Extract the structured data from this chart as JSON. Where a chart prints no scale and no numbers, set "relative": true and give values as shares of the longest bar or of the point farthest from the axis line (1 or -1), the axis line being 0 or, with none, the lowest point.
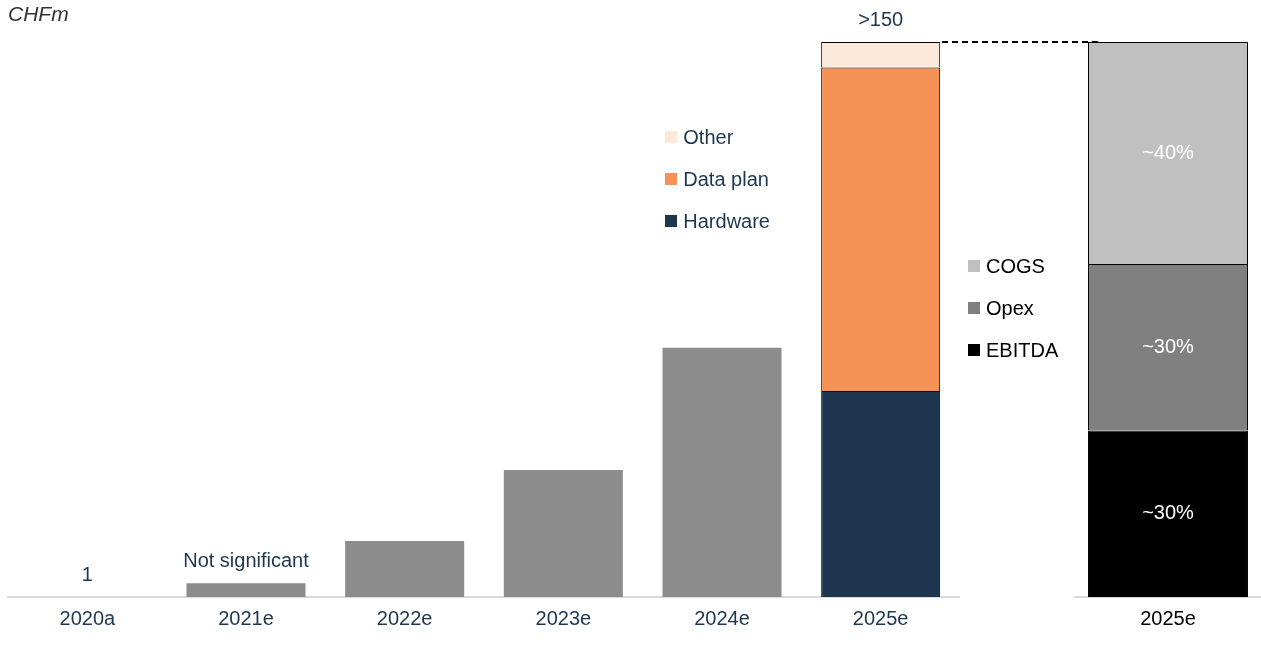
{
  "chart_data": [
    {
      "type": "bar",
      "ylabel": "CHFm",
      "categories": [
        "2020a",
        "2021e",
        "2022e",
        "2023e",
        "2024e",
        "2025e"
      ],
      "stacked": true,
      "relative": true,
      "legend": "top right",
      "totals": [
        "1",
        "Not significant",
        null,
        null,
        null,
        ">150"
      ],
      "series": [
        {
          "color": "#8c8c8c",
          "values": [
            0,
            0.025,
            0.101,
            0.229,
            0.449,
            null
          ]
        },
        {
          "name": "Hardware",
          "color": "#1f3650",
          "values": [
            null,
            null,
            null,
            null,
            null,
            0.371
          ]
        },
        {
          "name": "Data plan",
          "color": "#f79256",
          "values": [
            null,
            null,
            null,
            null,
            null,
            0.583
          ]
        },
        {
          "name": "Other",
          "color": "#fde9d9",
          "values": [
            null,
            null,
            null,
            null,
            null,
            0.046
          ]
        }
      ]
    },
    {
      "type": "bar",
      "categories": [
        "2025e"
      ],
      "stacked": true,
      "ylim": [
        0,
        100
      ],
      "tick_labels": "x",
      "legend": "left",
      "series": [
        {
          "name": "EBITDA",
          "color": "#000000",
          "values": [
            30
          ],
          "value_labels": [
            "~30%"
          ]
        },
        {
          "name": "Opex",
          "color": "#808080",
          "values": [
            30
          ],
          "value_labels": [
            "~30%"
          ]
        },
        {
          "name": "COGS",
          "color": "#c0c0c0",
          "values": [
            40
          ],
          "value_labels": [
            "~40%"
          ]
        }
      ]
    }
  ]
}
